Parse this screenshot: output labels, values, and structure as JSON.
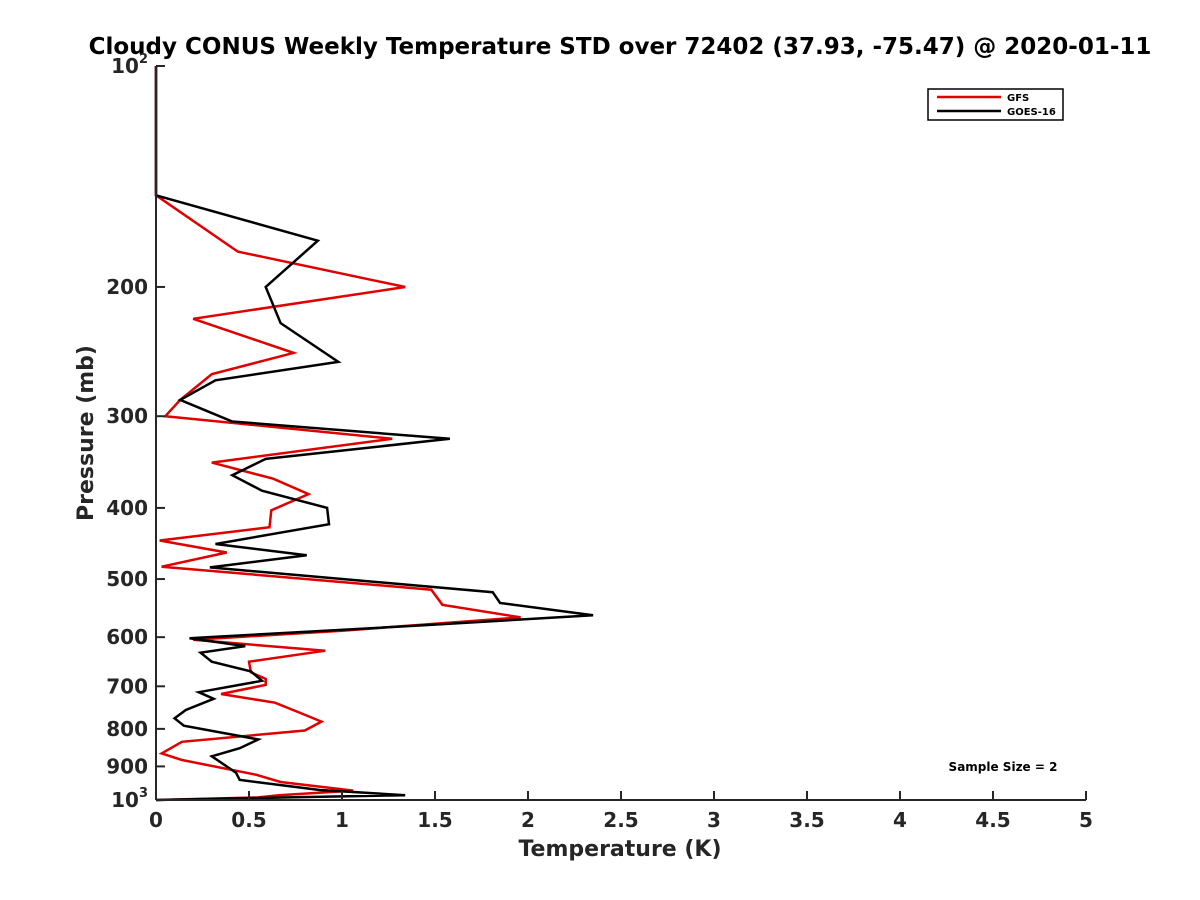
{
  "chart_data": {
    "type": "line",
    "title": "Cloudy CONUS Weekly Temperature STD over 72402 (37.93, -75.47) @ 2020-01-11",
    "xlabel": "Temperature (K)",
    "ylabel": "Pressure (mb)",
    "xlim": [
      0,
      5
    ],
    "ylim": [
      100,
      1000
    ],
    "yscale": "log",
    "y_reversed": true,
    "grid": false,
    "legend_position": "top-right",
    "x_ticks": [
      "0",
      "0.5",
      "1",
      "1.5",
      "2",
      "2.5",
      "3",
      "3.5",
      "4",
      "4.5",
      "5"
    ],
    "y_ticks": [
      {
        "value": 100,
        "base": "10",
        "exp": "2"
      },
      {
        "value": 200,
        "label": "200"
      },
      {
        "value": 300,
        "label": "300"
      },
      {
        "value": 400,
        "label": "400"
      },
      {
        "value": 500,
        "label": "500"
      },
      {
        "value": 600,
        "label": "600"
      },
      {
        "value": 700,
        "label": "700"
      },
      {
        "value": 800,
        "label": "800"
      },
      {
        "value": 900,
        "label": "900"
      },
      {
        "value": 1000,
        "base": "10",
        "exp": "3"
      }
    ],
    "series": [
      {
        "name": "GFS",
        "color": "#e00000",
        "points": [
          [
            0.0,
            100
          ],
          [
            0.0,
            150
          ],
          [
            0.44,
            179
          ],
          [
            1.34,
            200
          ],
          [
            0.2,
            221
          ],
          [
            0.74,
            246
          ],
          [
            0.3,
            263
          ],
          [
            0.13,
            285
          ],
          [
            0.05,
            300
          ],
          [
            1.27,
            322
          ],
          [
            0.3,
            347
          ],
          [
            0.63,
            365
          ],
          [
            0.82,
            383
          ],
          [
            0.62,
            403
          ],
          [
            0.61,
            425
          ],
          [
            0.02,
            443
          ],
          [
            0.38,
            460
          ],
          [
            0.03,
            481
          ],
          [
            1.48,
            517
          ],
          [
            1.54,
            542
          ],
          [
            1.96,
            564
          ],
          [
            1.0,
            588
          ],
          [
            0.2,
            605
          ],
          [
            0.91,
            626
          ],
          [
            0.5,
            648
          ],
          [
            0.51,
            670
          ],
          [
            0.59,
            684
          ],
          [
            0.59,
            697
          ],
          [
            0.35,
            717
          ],
          [
            0.64,
            737
          ],
          [
            0.77,
            760
          ],
          [
            0.89,
            782
          ],
          [
            0.8,
            804
          ],
          [
            0.14,
            833
          ],
          [
            0.03,
            864
          ],
          [
            0.14,
            882
          ],
          [
            0.54,
            924
          ],
          [
            0.67,
            945
          ],
          [
            1.06,
            971
          ],
          [
            0.66,
            985
          ],
          [
            0.55,
            992
          ],
          [
            0.0,
            1000
          ]
        ]
      },
      {
        "name": "GOES-16",
        "color": "#000000",
        "points": [
          [
            0.0,
            100
          ],
          [
            0.0,
            150
          ],
          [
            0.87,
            173
          ],
          [
            0.59,
            200
          ],
          [
            0.67,
            224
          ],
          [
            0.98,
            253
          ],
          [
            0.32,
            268
          ],
          [
            0.13,
            285
          ],
          [
            0.41,
            305
          ],
          [
            1.58,
            322
          ],
          [
            0.59,
            343
          ],
          [
            0.41,
            361
          ],
          [
            0.57,
            379
          ],
          [
            0.92,
            400
          ],
          [
            0.93,
            421
          ],
          [
            0.32,
            448
          ],
          [
            0.81,
            464
          ],
          [
            0.29,
            482
          ],
          [
            1.81,
            521
          ],
          [
            1.85,
            539
          ],
          [
            2.35,
            560
          ],
          [
            1.44,
            578
          ],
          [
            0.18,
            602
          ],
          [
            0.48,
            617
          ],
          [
            0.24,
            630
          ],
          [
            0.3,
            648
          ],
          [
            0.51,
            668
          ],
          [
            0.57,
            688
          ],
          [
            0.23,
            713
          ],
          [
            0.31,
            728
          ],
          [
            0.16,
            754
          ],
          [
            0.1,
            774
          ],
          [
            0.15,
            792
          ],
          [
            0.55,
            827
          ],
          [
            0.45,
            850
          ],
          [
            0.3,
            872
          ],
          [
            0.43,
            918
          ],
          [
            0.45,
            939
          ],
          [
            0.88,
            969
          ],
          [
            1.34,
            985
          ],
          [
            0.71,
            992
          ],
          [
            0.0,
            1000
          ]
        ]
      }
    ],
    "annotation": "Sample Size = 2"
  }
}
